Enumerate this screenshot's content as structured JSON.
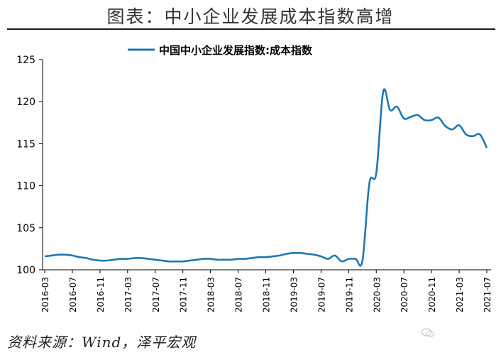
{
  "header": {
    "title": "图表：中小企业发展成本指数高增"
  },
  "footer": {
    "source": "资料来源：Wind，泽平宏观",
    "watermark": "泽平宏观"
  },
  "colors": {
    "series": "#1f77b4",
    "axis": "#000000",
    "text": "#000000"
  },
  "chart_data": {
    "type": "line",
    "title": "",
    "xlabel": "",
    "ylabel": "",
    "ylim": [
      100,
      125
    ],
    "yticks": [
      100,
      105,
      110,
      115,
      120,
      125
    ],
    "grid": false,
    "legend_position": "top-center",
    "x": [
      "2016-03",
      "2016-04",
      "2016-05",
      "2016-06",
      "2016-07",
      "2016-08",
      "2016-09",
      "2016-10",
      "2016-11",
      "2016-12",
      "2017-01",
      "2017-02",
      "2017-03",
      "2017-04",
      "2017-05",
      "2017-06",
      "2017-07",
      "2017-08",
      "2017-09",
      "2017-10",
      "2017-11",
      "2017-12",
      "2018-01",
      "2018-02",
      "2018-03",
      "2018-04",
      "2018-05",
      "2018-06",
      "2018-07",
      "2018-08",
      "2018-09",
      "2018-10",
      "2018-11",
      "2018-12",
      "2019-01",
      "2019-02",
      "2019-03",
      "2019-04",
      "2019-05",
      "2019-06",
      "2019-07",
      "2019-08",
      "2019-09",
      "2019-10",
      "2019-11",
      "2019-12",
      "2020-01",
      "2020-02",
      "2020-03",
      "2020-04",
      "2020-05",
      "2020-06",
      "2020-07",
      "2020-08",
      "2020-09",
      "2020-10",
      "2020-11",
      "2020-12",
      "2021-01",
      "2021-02",
      "2021-03",
      "2021-04",
      "2021-05",
      "2021-06",
      "2021-07"
    ],
    "xtick_labels": [
      "2016-03",
      "2016-07",
      "2016-11",
      "2017-03",
      "2017-07",
      "2017-11",
      "2018-03",
      "2018-07",
      "2018-11",
      "2019-03",
      "2019-07",
      "2019-11",
      "2020-03",
      "2020-07",
      "2020-11",
      "2021-03",
      "2021-07"
    ],
    "series": [
      {
        "name": "中国中小企业发展指数:成本指数",
        "values": [
          101.6,
          101.7,
          101.8,
          101.8,
          101.7,
          101.5,
          101.4,
          101.2,
          101.1,
          101.1,
          101.2,
          101.3,
          101.3,
          101.4,
          101.4,
          101.3,
          101.2,
          101.1,
          101.0,
          101.0,
          101.0,
          101.1,
          101.2,
          101.3,
          101.3,
          101.2,
          101.2,
          101.2,
          101.3,
          101.3,
          101.4,
          101.5,
          101.5,
          101.6,
          101.7,
          101.9,
          102.0,
          102.0,
          101.9,
          101.8,
          101.6,
          101.3,
          101.7,
          101.0,
          101.3,
          101.3,
          101.1,
          110.3,
          111.5,
          121.2,
          119.0,
          119.4,
          118.0,
          118.2,
          118.4,
          117.8,
          117.8,
          118.1,
          117.1,
          116.7,
          117.2,
          116.1,
          115.9,
          116.1,
          114.5
        ]
      }
    ]
  }
}
